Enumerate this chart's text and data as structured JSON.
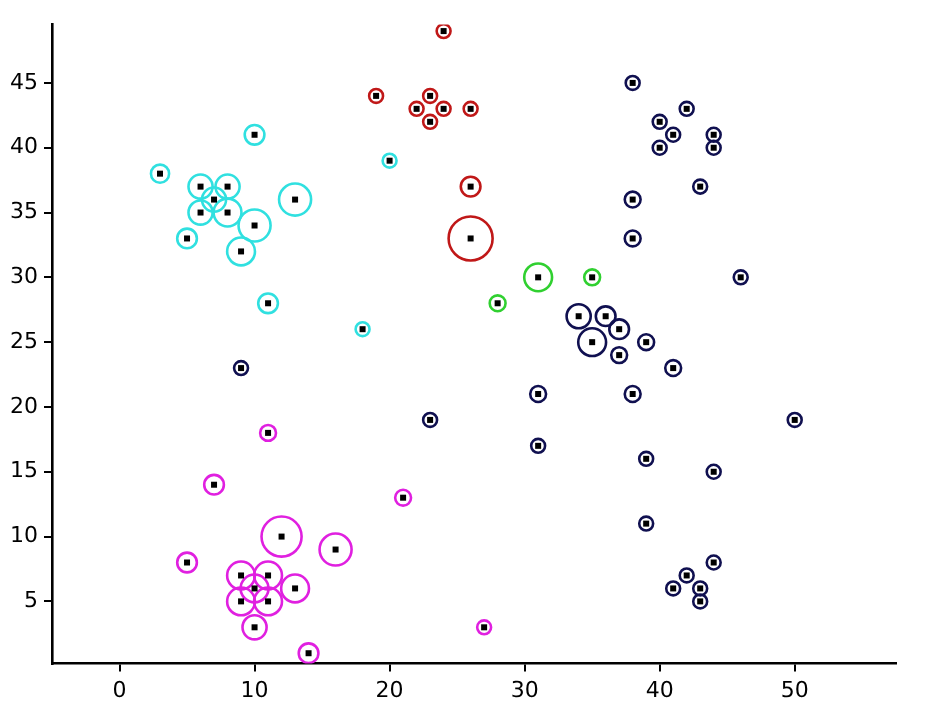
{
  "chart_data": {
    "type": "bubble",
    "xlim": [
      -5,
      57.5
    ],
    "ylim": [
      0.2,
      49.5
    ],
    "xticks": [
      0,
      10,
      20,
      30,
      40,
      50
    ],
    "yticks": [
      5,
      10,
      15,
      20,
      25,
      30,
      35,
      40,
      45
    ],
    "grid": false,
    "legend": false,
    "series": [
      {
        "color": "#30e0e0",
        "x": [
          3,
          6,
          8,
          7,
          6,
          8,
          10,
          13,
          5,
          9,
          10,
          11,
          20,
          18
        ],
        "values": [
          38,
          37,
          37,
          36,
          35,
          35,
          34,
          36,
          33,
          32,
          41,
          28,
          39,
          26
        ],
        "sizes": [
          0.17,
          0.3,
          0.3,
          0.3,
          0.3,
          0.4,
          0.53,
          0.53,
          0.2,
          0.4,
          0.2,
          0.2,
          0.1,
          0.1
        ]
      },
      {
        "color": "#e020e0",
        "x": [
          7,
          5,
          12,
          16,
          9,
          11,
          10,
          13,
          9,
          11,
          10,
          14,
          21,
          11,
          27
        ],
        "values": [
          14,
          8,
          10,
          9,
          7,
          7,
          6,
          6,
          5,
          5,
          3,
          1,
          13,
          18,
          3
        ],
        "sizes": [
          0.2,
          0.2,
          0.83,
          0.53,
          0.4,
          0.4,
          0.4,
          0.4,
          0.4,
          0.4,
          0.3,
          0.2,
          0.13,
          0.13,
          0.1
        ]
      },
      {
        "color": "#c01818",
        "x": [
          24,
          19,
          22,
          23,
          24,
          23,
          26,
          26,
          26
        ],
        "values": [
          49,
          44,
          43,
          44,
          43,
          42,
          43,
          37,
          33
        ],
        "sizes": [
          0.1,
          0.1,
          0.1,
          0.1,
          0.1,
          0.1,
          0.1,
          0.2,
          1
        ]
      },
      {
        "color": "#30d030",
        "x": [
          31,
          28,
          35
        ],
        "values": [
          30,
          28,
          30
        ],
        "sizes": [
          0.4,
          0.13,
          0.13
        ]
      },
      {
        "color": "#101050",
        "x": [
          38,
          42,
          40,
          41,
          44,
          40,
          44,
          43,
          38,
          38,
          46,
          34,
          36,
          37,
          35,
          39,
          37,
          41,
          31,
          38,
          50,
          31,
          39,
          44,
          39,
          44,
          42,
          41,
          43,
          43,
          23,
          9
        ],
        "values": [
          45,
          43,
          42,
          41,
          41,
          40,
          40,
          37,
          36,
          33,
          30,
          27,
          27,
          26,
          25,
          25,
          24,
          23,
          21,
          21,
          19,
          17,
          16,
          15,
          11,
          8,
          7,
          6,
          6,
          5,
          19,
          23
        ],
        "sizes": [
          0.1,
          0.1,
          0.1,
          0.1,
          0.1,
          0.1,
          0.1,
          0.1,
          0.13,
          0.13,
          0.1,
          0.3,
          0.2,
          0.2,
          0.4,
          0.13,
          0.13,
          0.13,
          0.13,
          0.13,
          0.1,
          0.1,
          0.1,
          0.1,
          0.1,
          0.1,
          0.1,
          0.1,
          0.1,
          0.1,
          0.1,
          0.1
        ]
      }
    ]
  }
}
